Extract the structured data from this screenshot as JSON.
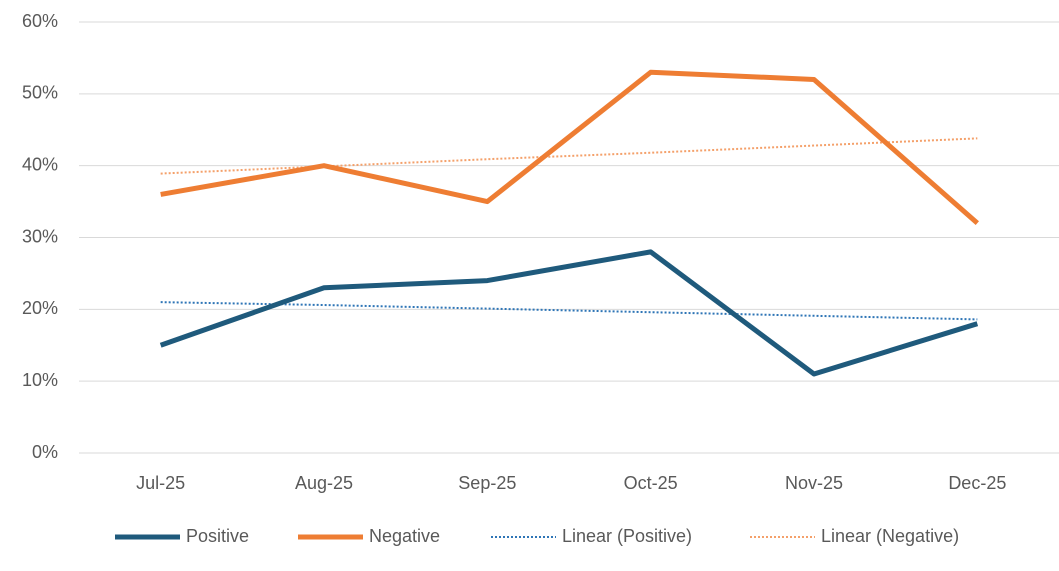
{
  "chart_data": {
    "type": "line",
    "categories": [
      "Jul-25",
      "Aug-25",
      "Sep-25",
      "Oct-25",
      "Nov-25",
      "Dec-25"
    ],
    "series": [
      {
        "name": "Positive",
        "color": "#1f5a7c",
        "style": "solid",
        "values": [
          15,
          23,
          24,
          28,
          11,
          18
        ]
      },
      {
        "name": "Negative",
        "color": "#ee7d33",
        "style": "solid",
        "values": [
          36,
          40,
          35,
          53,
          52,
          32
        ]
      },
      {
        "name": "Linear (Positive)",
        "color": "#2e75b6",
        "style": "dotted",
        "values": [
          21.0,
          20.6,
          20.1,
          19.6,
          19.1,
          18.6
        ]
      },
      {
        "name": "Linear (Negative)",
        "color": "#f4a06a",
        "style": "dotted",
        "values": [
          38.9,
          39.9,
          40.9,
          41.8,
          42.8,
          43.8
        ]
      }
    ],
    "ylim": [
      0,
      60
    ],
    "yticks": [
      {
        "value": 0,
        "label": "0%"
      },
      {
        "value": 10,
        "label": "10%"
      },
      {
        "value": 20,
        "label": "20%"
      },
      {
        "value": 30,
        "label": "30%"
      },
      {
        "value": 40,
        "label": "40%"
      },
      {
        "value": 50,
        "label": "50%"
      },
      {
        "value": 60,
        "label": "60%"
      }
    ],
    "grid": true,
    "legend": "bottom"
  }
}
